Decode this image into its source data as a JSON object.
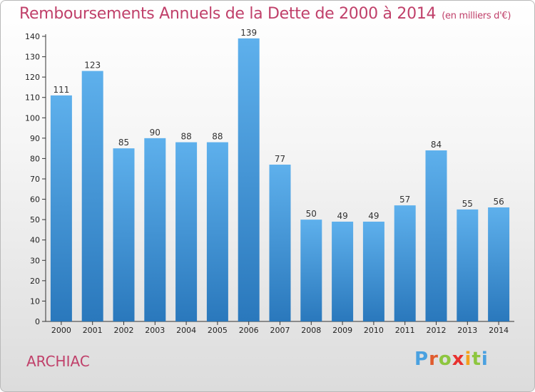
{
  "title": "Remboursements Annuels de la Dette de 2000 à 2014",
  "unit_note": "(en milliers d'€)",
  "city": "ARCHIAC",
  "brand": {
    "letters": [
      "P",
      "r",
      "o",
      "x",
      "i",
      "t",
      "i"
    ],
    "colors": [
      "#4aa1e0",
      "#e05c2e",
      "#8dc63f",
      "#e8312f",
      "#f4a11c",
      "#8dc63f",
      "#4aa1e0"
    ]
  },
  "colors": {
    "accent": "#c0406a",
    "bar_top": "#5eb0ec",
    "bar_bottom": "#2a78bc"
  },
  "chart_data": {
    "type": "bar",
    "title": "Remboursements Annuels de la Dette de 2000 à 2014",
    "categories": [
      "2000",
      "2001",
      "2002",
      "2003",
      "2004",
      "2005",
      "2006",
      "2007",
      "2008",
      "2009",
      "2010",
      "2011",
      "2012",
      "2013",
      "2014"
    ],
    "values": [
      111,
      123,
      85,
      90,
      88,
      88,
      139,
      77,
      50,
      49,
      49,
      57,
      84,
      55,
      56
    ],
    "yticks": [
      0,
      10,
      20,
      30,
      40,
      50,
      60,
      70,
      80,
      90,
      100,
      110,
      120,
      130,
      140
    ],
    "ylim": [
      0,
      140
    ],
    "xlabel": "",
    "ylabel": "",
    "grid": false
  }
}
